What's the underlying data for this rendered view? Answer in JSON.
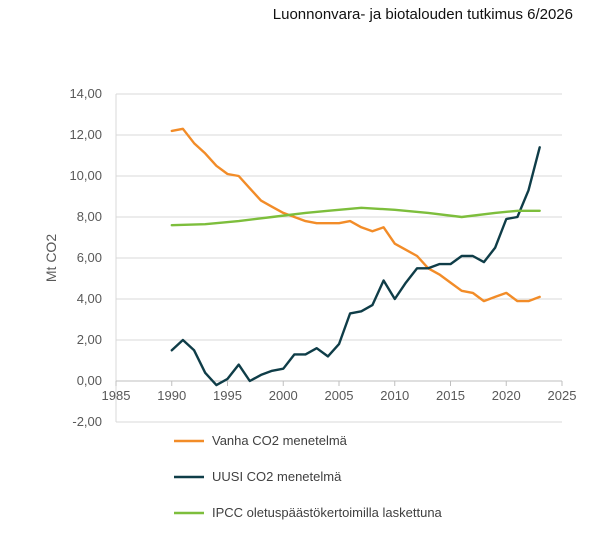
{
  "header": {
    "text": "Luonnonvara- ja biotalouden tutkimus 6/2026"
  },
  "chart_data": {
    "type": "line",
    "title": "",
    "ylabel": "Mt CO2",
    "xlabel": "",
    "xlim": [
      1985,
      2025
    ],
    "ylim": [
      -2,
      14
    ],
    "x_ticks": [
      1985,
      1990,
      1995,
      2000,
      2005,
      2010,
      2015,
      2020,
      2025
    ],
    "x_tick_labels": [
      "1985",
      "1990",
      "1995",
      "2000",
      "2005",
      "2010",
      "2015",
      "2020",
      "2025"
    ],
    "y_ticks": [
      -2,
      0,
      2,
      4,
      6,
      8,
      10,
      12,
      14
    ],
    "y_tick_labels": [
      "-2,00",
      "0,00",
      "2,00",
      "4,00",
      "6,00",
      "8,00",
      "10,00",
      "12,00",
      "14,00"
    ],
    "grid": "horizontal",
    "legend_position": "bottom",
    "series": [
      {
        "name": "Vanha CO2 menetelmä",
        "color": "#F28C28",
        "x": [
          1990,
          1991,
          1992,
          1993,
          1994,
          1995,
          1996,
          1997,
          1998,
          1999,
          2000,
          2001,
          2002,
          2003,
          2004,
          2005,
          2006,
          2007,
          2008,
          2009,
          2010,
          2011,
          2012,
          2013,
          2014,
          2015,
          2016,
          2017,
          2018,
          2019,
          2020,
          2021,
          2022,
          2023
        ],
        "y": [
          12.2,
          12.3,
          11.6,
          11.1,
          10.5,
          10.1,
          10.0,
          9.4,
          8.8,
          8.5,
          8.2,
          8.0,
          7.8,
          7.7,
          7.7,
          7.7,
          7.8,
          7.5,
          7.3,
          7.5,
          6.7,
          6.4,
          6.1,
          5.5,
          5.2,
          4.8,
          4.4,
          4.3,
          3.9,
          4.1,
          4.3,
          3.9,
          3.9,
          4.1
        ]
      },
      {
        "name": "UUSI CO2 menetelmä",
        "color": "#0F3D48",
        "x": [
          1990,
          1991,
          1992,
          1993,
          1994,
          1995,
          1996,
          1997,
          1998,
          1999,
          2000,
          2001,
          2002,
          2003,
          2004,
          2005,
          2006,
          2007,
          2008,
          2009,
          2010,
          2011,
          2012,
          2013,
          2014,
          2015,
          2016,
          2017,
          2018,
          2019,
          2020,
          2021,
          2022,
          2023
        ],
        "y": [
          1.5,
          2.0,
          1.5,
          0.4,
          -0.2,
          0.1,
          0.8,
          0.0,
          0.3,
          0.5,
          0.6,
          1.3,
          1.3,
          1.6,
          1.2,
          1.8,
          3.3,
          3.4,
          3.7,
          4.9,
          4.0,
          4.8,
          5.5,
          5.5,
          5.7,
          5.7,
          6.1,
          6.1,
          5.8,
          6.5,
          7.9,
          8.0,
          9.3,
          11.4
        ]
      },
      {
        "name": "IPCC oletuspäästökertoimilla laskettuna",
        "color": "#7DBE3C",
        "x": [
          1990,
          1993,
          1996,
          1999,
          2002,
          2004,
          2007,
          2010,
          2013,
          2016,
          2019,
          2021,
          2023
        ],
        "y": [
          7.6,
          7.65,
          7.8,
          8.0,
          8.2,
          8.3,
          8.45,
          8.35,
          8.2,
          8.0,
          8.2,
          8.3,
          8.3
        ]
      }
    ]
  }
}
